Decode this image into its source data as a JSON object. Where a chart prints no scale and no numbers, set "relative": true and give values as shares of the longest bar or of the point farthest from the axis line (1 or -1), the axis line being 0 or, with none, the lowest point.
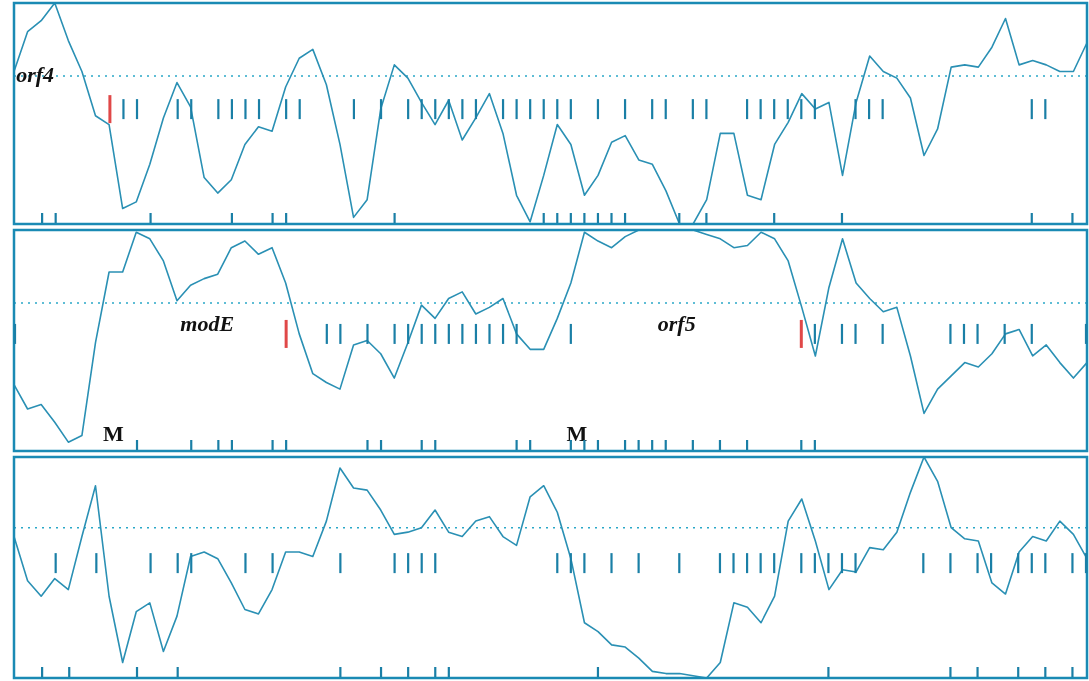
{
  "chart_data": [
    {
      "type": "line",
      "relative": true,
      "categories": [
        null,
        null,
        null,
        null,
        null,
        null,
        null,
        null,
        null,
        null,
        null,
        null,
        null,
        null,
        null,
        null,
        null,
        null,
        null,
        null,
        null,
        null,
        null,
        null,
        null,
        null,
        null,
        null,
        null,
        null,
        null,
        null,
        null,
        null,
        null,
        null,
        null,
        null,
        null,
        null,
        null,
        null,
        null,
        null,
        null,
        null,
        null,
        null,
        null,
        null,
        null,
        null,
        null,
        null,
        null,
        null,
        null,
        null,
        null,
        null,
        null,
        null,
        null,
        null,
        null,
        null,
        null,
        null,
        null,
        null,
        null,
        null,
        null,
        null,
        null,
        null,
        null,
        null,
        null,
        null
      ],
      "series": [
        {
          "color": "#2a90b4",
          "values": [
            0.69,
            0.87,
            0.92,
            1.0,
            0.83,
            0.69,
            0.49,
            0.45,
            0.07,
            0.1,
            0.27,
            0.48,
            0.64,
            0.53,
            0.21,
            0.14,
            0.2,
            0.36,
            0.44,
            0.42,
            0.62,
            0.75,
            0.79,
            0.63,
            0.36,
            0.03,
            0.11,
            0.52,
            0.72,
            0.66,
            0.55,
            0.45,
            0.56,
            0.38,
            0.48,
            0.59,
            0.41,
            0.13,
            0.01,
            0.22,
            0.45,
            0.36,
            0.13,
            0.22,
            0.37,
            0.4,
            0.29,
            0.27,
            0.15,
            0,
            0,
            0.11,
            0.41,
            0.41,
            0.13,
            0.11,
            0.36,
            0.46,
            0.59,
            0.52,
            0.55,
            0.22,
            0.55,
            0.76,
            0.69,
            0.66,
            0.57,
            0.31,
            0.43,
            0.71,
            0.72,
            0.71,
            0.8,
            0.93,
            0.72,
            0.74,
            0.72,
            0.69,
            0.69,
            0.82
          ]
        }
      ],
      "ref_lines": [
        {
          "axis": "y",
          "value": 0.67,
          "color": "#2aa8c8",
          "line_style": "dotted"
        }
      ],
      "annotations": [
        "orf4"
      ]
    },
    {
      "type": "line",
      "relative": true,
      "categories": [
        null,
        null,
        null,
        null,
        null,
        null,
        null,
        null,
        null,
        null,
        null,
        null,
        null,
        null,
        null,
        null,
        null,
        null,
        null,
        null,
        null,
        null,
        null,
        null,
        null,
        null,
        null,
        null,
        null,
        null,
        null,
        null,
        null,
        null,
        null,
        null,
        null,
        null,
        null,
        null,
        null,
        null,
        null,
        null,
        null,
        null,
        null,
        null,
        null,
        null,
        null,
        null,
        null,
        null,
        null,
        null,
        null,
        null,
        null,
        null,
        null,
        null,
        null,
        null,
        null,
        null,
        null,
        null,
        null,
        null,
        null,
        null,
        null,
        null,
        null,
        null,
        null,
        null,
        null,
        null
      ],
      "series": [
        {
          "color": "#2a90b4",
          "values": [
            0.3,
            0.19,
            0.21,
            0.13,
            0.04,
            0.07,
            0.49,
            0.81,
            0.81,
            0.99,
            0.96,
            0.86,
            0.68,
            0.75,
            0.78,
            0.8,
            0.92,
            0.95,
            0.89,
            0.92,
            0.76,
            0.53,
            0.35,
            0.31,
            0.28,
            0.48,
            0.5,
            0.44,
            0.33,
            0.49,
            0.66,
            0.6,
            0.69,
            0.72,
            0.62,
            0.65,
            0.69,
            0.53,
            0.46,
            0.46,
            0.6,
            0.76,
            0.99,
            0.95,
            0.92,
            0.97,
            1.0,
            1.0,
            1.0,
            1.0,
            1.0,
            0.98,
            0.96,
            0.92,
            0.93,
            0.99,
            0.96,
            0.86,
            0.65,
            0.43,
            0.74,
            0.96,
            0.76,
            0.69,
            0.63,
            0.65,
            0.43,
            0.17,
            0.28,
            0.34,
            0.4,
            0.38,
            0.44,
            0.53,
            0.55,
            0.43,
            0.48,
            0.4,
            0.33,
            0.4
          ]
        }
      ],
      "ref_lines": [
        {
          "axis": "y",
          "value": 0.67,
          "color": "#2aa8c8",
          "line_style": "dotted"
        }
      ],
      "annotations": [
        "modE",
        "orf5",
        "M",
        "M"
      ]
    },
    {
      "type": "line",
      "relative": true,
      "categories": [
        null,
        null,
        null,
        null,
        null,
        null,
        null,
        null,
        null,
        null,
        null,
        null,
        null,
        null,
        null,
        null,
        null,
        null,
        null,
        null,
        null,
        null,
        null,
        null,
        null,
        null,
        null,
        null,
        null,
        null,
        null,
        null,
        null,
        null,
        null,
        null,
        null,
        null,
        null,
        null,
        null,
        null,
        null,
        null,
        null,
        null,
        null,
        null,
        null,
        null,
        null,
        null,
        null,
        null,
        null,
        null,
        null,
        null,
        null,
        null,
        null,
        null,
        null,
        null,
        null,
        null,
        null,
        null,
        null,
        null,
        null,
        null,
        null,
        null,
        null,
        null,
        null,
        null,
        null,
        null
      ],
      "series": [
        {
          "color": "#2a90b4",
          "values": [
            0.64,
            0.44,
            0.37,
            0.45,
            0.4,
            0.64,
            0.87,
            0.37,
            0.07,
            0.3,
            0.34,
            0.12,
            0.28,
            0.55,
            0.57,
            0.54,
            0.43,
            0.31,
            0.29,
            0.4,
            0.57,
            0.57,
            0.55,
            0.71,
            0.95,
            0.86,
            0.85,
            0.76,
            0.65,
            0.66,
            0.68,
            0.76,
            0.66,
            0.64,
            0.71,
            0.73,
            0.64,
            0.6,
            0.82,
            0.87,
            0.75,
            0.54,
            0.25,
            0.21,
            0.15,
            0.14,
            0.09,
            0.03,
            0.02,
            0.02,
            0.01,
            0,
            0.07,
            0.34,
            0.32,
            0.25,
            0.37,
            0.71,
            0.81,
            0.62,
            0.4,
            0.49,
            0.48,
            0.59,
            0.58,
            0.66,
            0.84,
            1.0,
            0.89,
            0.68,
            0.63,
            0.62,
            0.43,
            0.38,
            0.57,
            0.64,
            0.62,
            0.71,
            0.65,
            0.54
          ]
        }
      ],
      "ref_lines": [
        {
          "axis": "y",
          "value": 0.68,
          "color": "#2aa8c8",
          "line_style": "dotted"
        }
      ]
    }
  ]
}
